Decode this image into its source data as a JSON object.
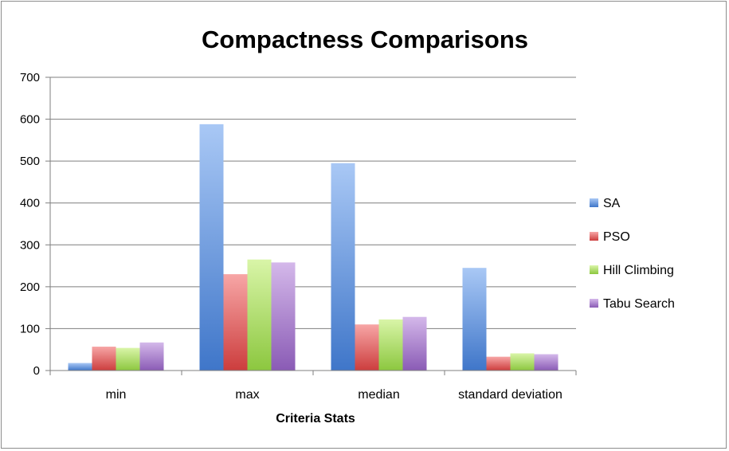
{
  "chart_data": {
    "type": "bar",
    "title": "Compactness Comparisons",
    "xlabel": "Criteria Stats",
    "ylabel": "",
    "categories": [
      "min",
      "max",
      "median",
      "standard deviation"
    ],
    "series": [
      {
        "name": "SA",
        "values": [
          18,
          588,
          495,
          245
        ],
        "color_top": "#a9c8f5",
        "color_bottom": "#3f76c9"
      },
      {
        "name": "PSO",
        "values": [
          57,
          230,
          110,
          33
        ],
        "color_top": "#f7a6a6",
        "color_bottom": "#cc3d3d"
      },
      {
        "name": "Hill Climbing",
        "values": [
          54,
          265,
          122,
          41
        ],
        "color_top": "#d9f5a8",
        "color_bottom": "#8cc73f"
      },
      {
        "name": "Tabu Search",
        "values": [
          67,
          258,
          128,
          39
        ],
        "color_top": "#d4b8ea",
        "color_bottom": "#8a5bb5"
      }
    ],
    "ylim": [
      0,
      700
    ],
    "yticks": [
      0,
      100,
      200,
      300,
      400,
      500,
      600,
      700
    ],
    "grid": true,
    "legend": "right"
  }
}
